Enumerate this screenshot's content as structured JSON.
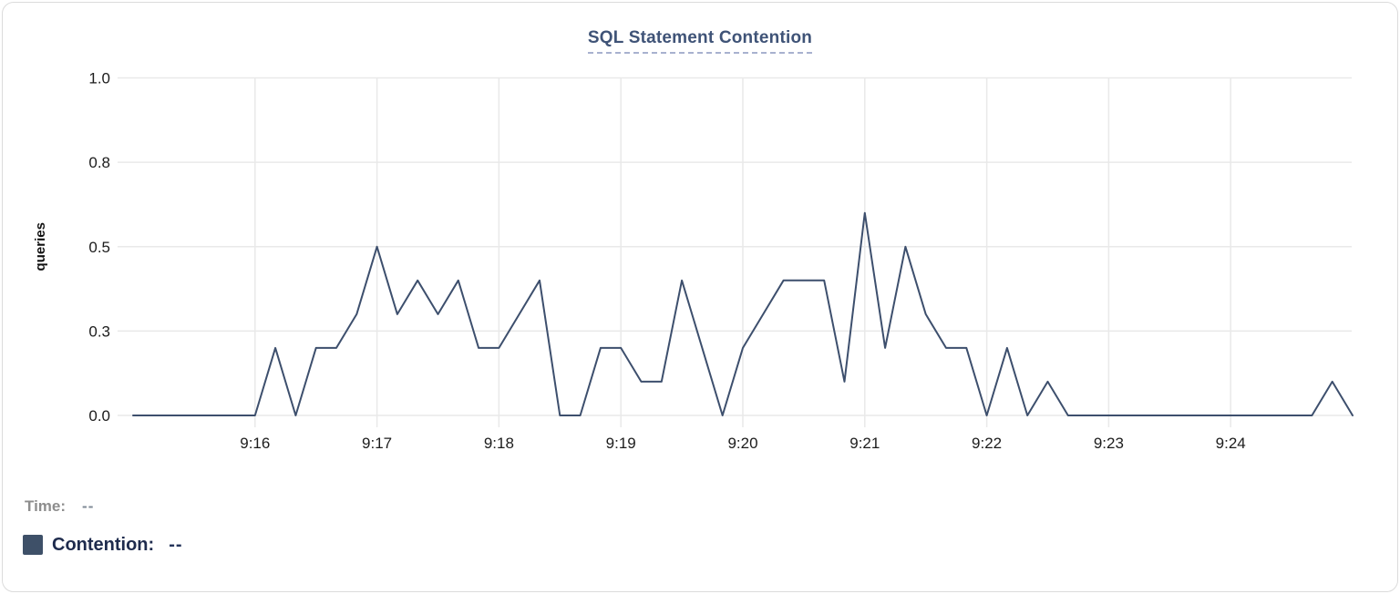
{
  "chart": {
    "title": "SQL Statement Contention"
  },
  "chart_data": {
    "type": "line",
    "title": "SQL Statement Contention",
    "xlabel": "",
    "ylabel": "queries",
    "x_start": "9:15",
    "x_end": "9:25",
    "interval_seconds": 10,
    "x_tick_labels": [
      "9:16",
      "9:17",
      "9:18",
      "9:19",
      "9:20",
      "9:21",
      "9:22",
      "9:23",
      "9:24"
    ],
    "y_ticks": [
      {
        "value": 1.0,
        "label": "1.0"
      },
      {
        "value": 0.75,
        "label": "0.8"
      },
      {
        "value": 0.5,
        "label": "0.5"
      },
      {
        "value": 0.25,
        "label": "0.3"
      },
      {
        "value": 0.0,
        "label": "0.0"
      }
    ],
    "ylim": [
      0,
      1
    ],
    "grid": true,
    "legend_position": "bottom-left",
    "series": [
      {
        "name": "Contention",
        "color": "#3d4f6d",
        "values": [
          0,
          0,
          0,
          0,
          0,
          0,
          0,
          0.2,
          0,
          0.2,
          0.2,
          0.3,
          0.5,
          0.3,
          0.4,
          0.3,
          0.4,
          0.2,
          0.2,
          0.3,
          0.4,
          0,
          0,
          0.2,
          0.2,
          0.1,
          0.1,
          0.4,
          0.2,
          0,
          0.2,
          0.3,
          0.4,
          0.4,
          0.4,
          0.1,
          0.6,
          0.2,
          0.5,
          0.3,
          0.2,
          0.2,
          0,
          0.2,
          0,
          0.1,
          0,
          0,
          0,
          0,
          0,
          0,
          0,
          0,
          0,
          0,
          0,
          0,
          0,
          0.1,
          0
        ]
      }
    ]
  },
  "legend": {
    "time_label": "Time:",
    "time_value": "--",
    "contention_label": "Contention:",
    "contention_value": "--",
    "swatch_color": "#3e5068"
  },
  "colors": {
    "title": "#3f5377",
    "title_underline": "#a8b1cf",
    "line": "#3d4f6d",
    "grid": "#e9e9e9",
    "tick_text": "#1c1c1c",
    "axis_label": "#111111",
    "time_label": "#8d8d8d",
    "time_value": "#7f8a96",
    "contention_text": "#1e2b4d",
    "contention_value": "#24345a"
  }
}
